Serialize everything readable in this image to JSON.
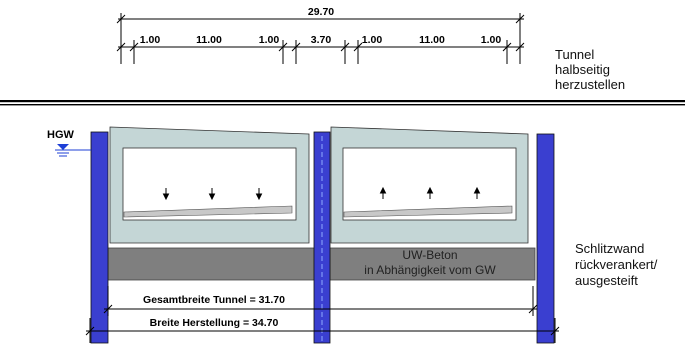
{
  "dimensions": {
    "total": "29.70",
    "segments": [
      "1.00",
      "11.00",
      "1.00",
      "3.70",
      "1.00",
      "11.00",
      "1.00"
    ],
    "gesamtbreite": "Gesamtbreite Tunnel = 31.70",
    "herstellung": "Breite Herstellung = 34.70"
  },
  "notes": {
    "tunnel": [
      "Tunnel",
      "halbseitig",
      "herzustellen"
    ],
    "schlitzwand": [
      "Schlitzwand",
      "rückverankert/",
      "ausgesteift"
    ]
  },
  "labels": {
    "hgw": "HGW",
    "uw_beton": [
      "UW-Beton",
      "in Abhängigkeit vom GW"
    ]
  },
  "colors": {
    "wall": "#3a3fd0",
    "tunnel_fill": "#c4d6d6",
    "uw_beton": "#7f7f7f",
    "water": "#1e3fd6"
  }
}
